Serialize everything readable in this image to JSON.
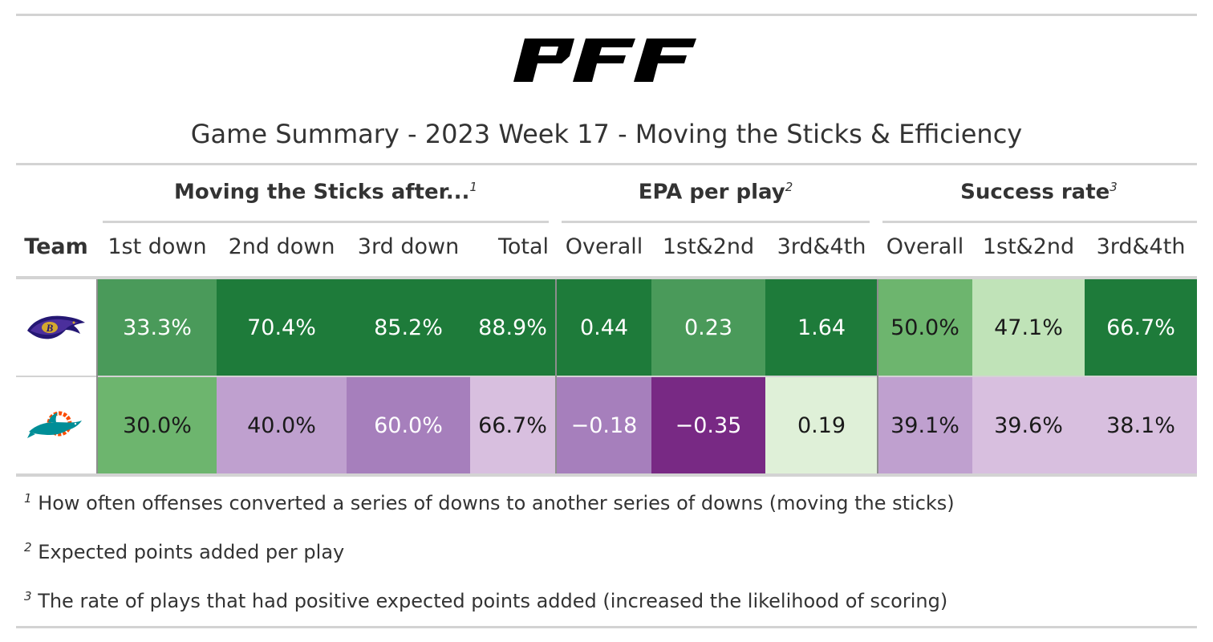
{
  "brand": "PFF",
  "title": "Game Summary - 2023 Week 17 - Moving the Sticks & Efficiency",
  "spanners": [
    {
      "label": "Moving the Sticks after...",
      "mark": "1"
    },
    {
      "label": "EPA per play",
      "mark": "2"
    },
    {
      "label": "Success rate",
      "mark": "3"
    }
  ],
  "columns": [
    "Team",
    "1st down",
    "2nd down",
    "3rd down",
    "Total",
    "Overall",
    "1st&2nd",
    "3rd&4th",
    "Overall",
    "1st&2nd",
    "3rd&4th"
  ],
  "rows": [
    {
      "team_icon": "ravens-logo-icon",
      "cells": [
        {
          "value": "33.3%",
          "bg": "#4a9a5a",
          "fg": "#ffffff"
        },
        {
          "value": "70.4%",
          "bg": "#1e7b3a",
          "fg": "#ffffff"
        },
        {
          "value": "85.2%",
          "bg": "#1e7b3a",
          "fg": "#ffffff"
        },
        {
          "value": "88.9%",
          "bg": "#1e7b3a",
          "fg": "#ffffff"
        },
        {
          "value": "0.44",
          "bg": "#1e7b3a",
          "fg": "#ffffff"
        },
        {
          "value": "0.23",
          "bg": "#4a9a5a",
          "fg": "#ffffff"
        },
        {
          "value": "1.64",
          "bg": "#1e7b3a",
          "fg": "#ffffff"
        },
        {
          "value": "50.0%",
          "bg": "#6db56e",
          "fg": "#1a1a1a"
        },
        {
          "value": "47.1%",
          "bg": "#c0e3b8",
          "fg": "#1a1a1a"
        },
        {
          "value": "66.7%",
          "bg": "#1e7b3a",
          "fg": "#ffffff"
        }
      ]
    },
    {
      "team_icon": "dolphins-logo-icon",
      "cells": [
        {
          "value": "30.0%",
          "bg": "#6db56e",
          "fg": "#1a1a1a"
        },
        {
          "value": "40.0%",
          "bg": "#bfa0cf",
          "fg": "#1a1a1a"
        },
        {
          "value": "60.0%",
          "bg": "#a67fbc",
          "fg": "#ffffff"
        },
        {
          "value": "66.7%",
          "bg": "#d8bfdf",
          "fg": "#1a1a1a"
        },
        {
          "value": "−0.18",
          "bg": "#a67fbc",
          "fg": "#ffffff"
        },
        {
          "value": "−0.35",
          "bg": "#782984",
          "fg": "#ffffff"
        },
        {
          "value": "0.19",
          "bg": "#dff0d8",
          "fg": "#1a1a1a"
        },
        {
          "value": "39.1%",
          "bg": "#bfa0cf",
          "fg": "#1a1a1a"
        },
        {
          "value": "39.6%",
          "bg": "#d8bfdf",
          "fg": "#1a1a1a"
        },
        {
          "value": "38.1%",
          "bg": "#d8bfdf",
          "fg": "#1a1a1a"
        }
      ]
    }
  ],
  "footnotes": [
    {
      "mark": "1",
      "text": "How often offenses converted a series of downs to another series of downs (moving the sticks)"
    },
    {
      "mark": "2",
      "text": "Expected points added per play"
    },
    {
      "mark": "3",
      "text": "The rate of plays that had positive expected points added (increased the likelihood of scoring)"
    }
  ]
}
